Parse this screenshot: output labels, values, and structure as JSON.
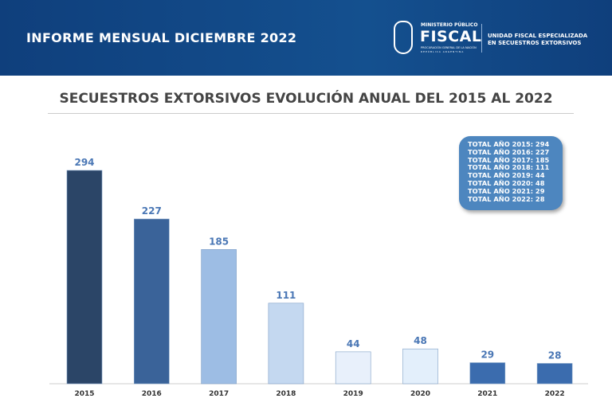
{
  "header": {
    "title": "INFORME MENSUAL DICIEMBRE 2022",
    "logo": {
      "ministerio": "MINISTERIO PÚBLICO",
      "fiscal": "FISCAL",
      "procuracion": "PROCURACIÓN GENERAL DE LA NACIÓN",
      "republica": "REPÚBLICA ARGENTINA"
    },
    "unit_line1": "UNIDAD FISCAL ESPECIALIZADA",
    "unit_line2": "EN SECUESTROS EXTORSIVOS"
  },
  "summary": [
    "TOTAL AÑO 2015: 294",
    "TOTAL AÑO 2016: 227",
    "TOTAL AÑO 2017: 185",
    "TOTAL AÑO 2018: 111",
    "TOTAL AÑO 2019: 44",
    "TOTAL AÑO 2020: 48",
    "TOTAL AÑO 2021: 29",
    "TOTAL AÑO 2022: 28"
  ],
  "chart_data": {
    "type": "bar",
    "title": "SECUESTROS EXTORSIVOS EVOLUCIÓN ANUAL DEL 2015 AL 2022",
    "categories": [
      "2015",
      "2016",
      "2017",
      "2018",
      "2019",
      "2020",
      "2021",
      "2022"
    ],
    "values": [
      294,
      227,
      185,
      111,
      44,
      48,
      29,
      28
    ],
    "colors": [
      "#2b4567",
      "#3a6399",
      "#9dbde4",
      "#c4d8f0",
      "#e8f0fb",
      "#e3effb",
      "#3b6cae",
      "#3b6cae"
    ],
    "label_color": "#4a77b5",
    "grid": false,
    "ylim": [
      0,
      294
    ]
  }
}
